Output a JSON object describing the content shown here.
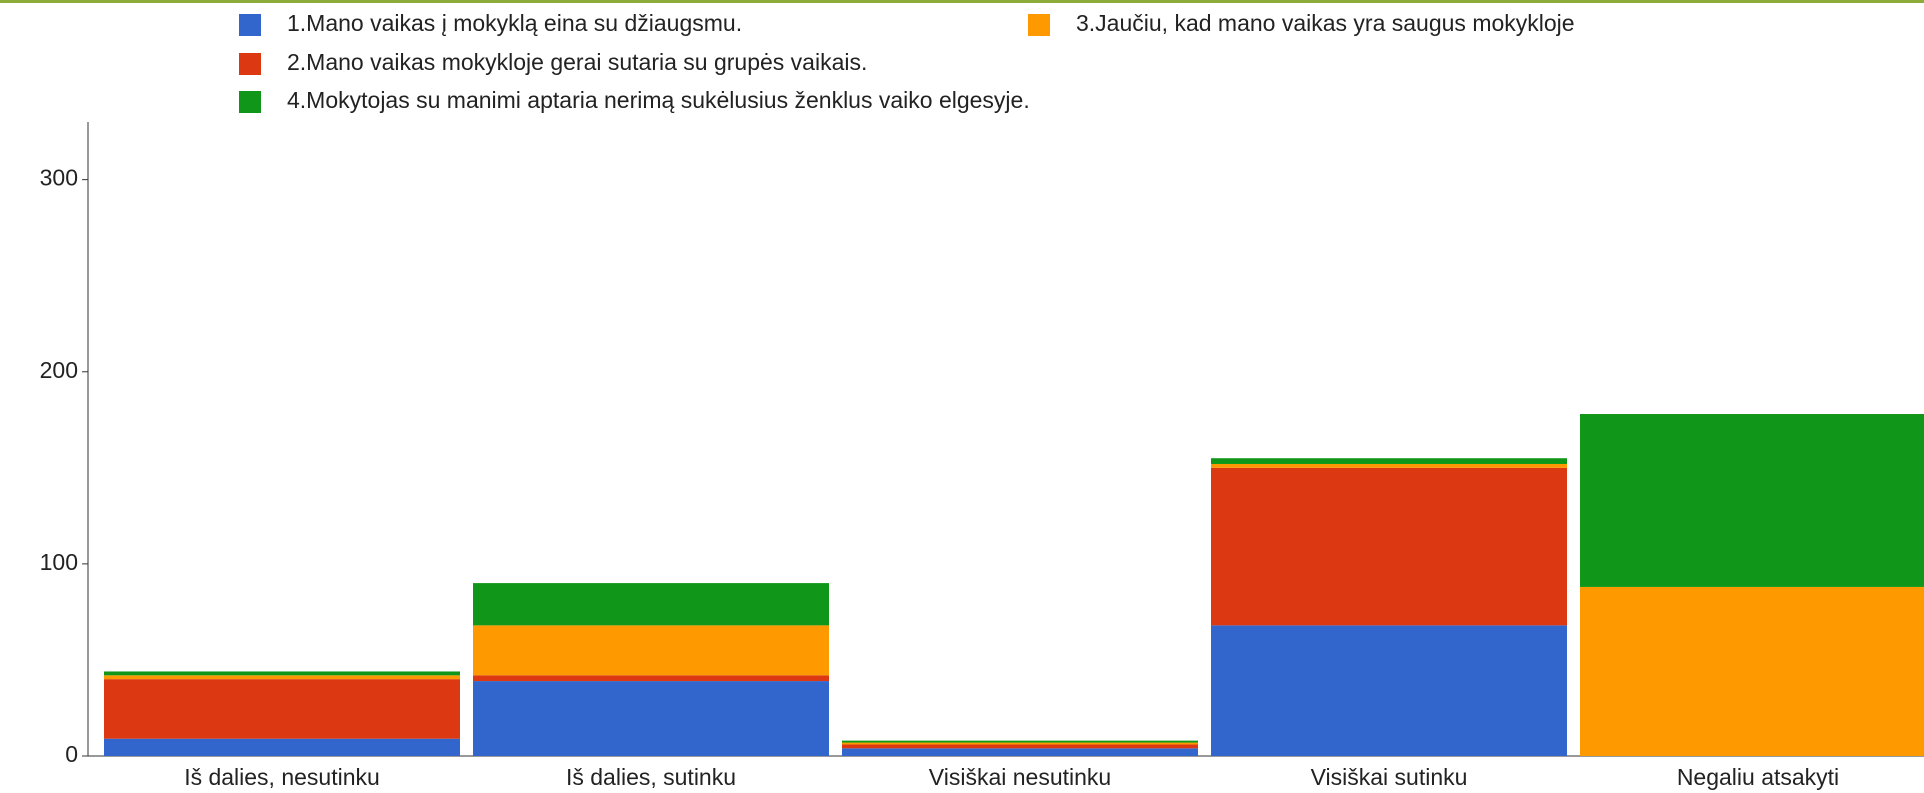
{
  "chart_data": {
    "type": "stacked_bar",
    "categories": [
      "Iš dalies, nesutinku",
      "Iš dalies, sutinku",
      "Visiškai nesutinku",
      "Visiškai sutinku",
      "Negaliu atsakyti"
    ],
    "series": [
      {
        "name": "1.Mano vaikas į mokyklą eina su džiaugsmu.",
        "color": "#3366cc",
        "values": [
          9,
          39,
          4,
          68,
          0
        ]
      },
      {
        "name": "2.Mano vaikas mokykloje gerai sutaria su grupės vaikais.",
        "color": "#dc3912",
        "values": [
          31,
          3,
          2,
          82,
          0
        ]
      },
      {
        "name": "3.Jaučiu, kad mano vaikas yra saugus mokykloje",
        "color": "#ff9900",
        "values": [
          2,
          26,
          1,
          2,
          88
        ]
      },
      {
        "name": "4.Mokytojas su manimi aptaria nerimą sukėlusius ženklus vaiko elgesyje.",
        "color": "#109618",
        "values": [
          2,
          22,
          1,
          3,
          90
        ]
      }
    ],
    "ylim": [
      0,
      330
    ],
    "yticks": [
      0,
      100,
      200,
      300
    ]
  }
}
